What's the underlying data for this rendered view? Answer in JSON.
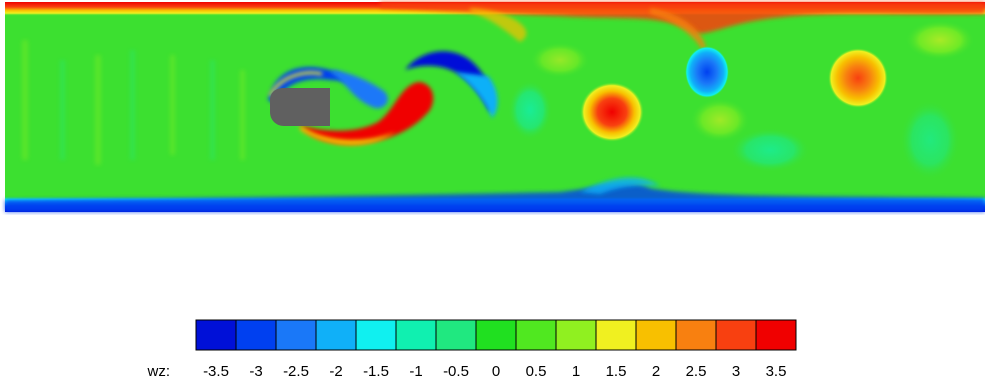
{
  "legend": {
    "variable_label": "wz:",
    "levels": [
      "-3.5",
      "-3",
      "-2.5",
      "-2",
      "-1.5",
      "-1",
      "-0.5",
      "0",
      "0.5",
      "1",
      "1.5",
      "2",
      "2.5",
      "3",
      "3.5"
    ],
    "colors": [
      "#0010d8",
      "#0040f0",
      "#1a78f8",
      "#10b0f8",
      "#10f0f0",
      "#10f0b0",
      "#20e880",
      "#20e020",
      "#50e820",
      "#90f020",
      "#f0f020",
      "#f8c000",
      "#f88010",
      "#f84010",
      "#f00000"
    ]
  },
  "field": {
    "background_color": "#3ce030",
    "obstacle_color": "#606060"
  }
}
